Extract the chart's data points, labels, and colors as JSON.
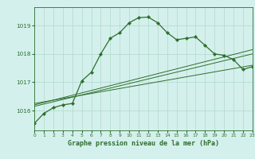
{
  "background_color": "#d4f0ec",
  "grid_color": "#b0d8cc",
  "line_color": "#2d6e2d",
  "title": "Graphe pression niveau de la mer (hPa)",
  "xlim": [
    0,
    23
  ],
  "ylim": [
    1015.3,
    1019.65
  ],
  "yticks": [
    1016,
    1017,
    1018,
    1019
  ],
  "xticks": [
    0,
    1,
    2,
    3,
    4,
    5,
    6,
    7,
    8,
    9,
    10,
    11,
    12,
    13,
    14,
    15,
    16,
    17,
    18,
    19,
    20,
    21,
    22,
    23
  ],
  "series": {
    "main": {
      "x": [
        0,
        1,
        2,
        3,
        4,
        5,
        6,
        7,
        8,
        9,
        10,
        11,
        12,
        13,
        14,
        15,
        16,
        17,
        18,
        19,
        20,
        21,
        22,
        23
      ],
      "y": [
        1015.55,
        1015.9,
        1016.1,
        1016.2,
        1016.25,
        1017.05,
        1017.35,
        1018.0,
        1018.55,
        1018.75,
        1019.1,
        1019.28,
        1019.3,
        1019.1,
        1018.75,
        1018.5,
        1018.55,
        1018.6,
        1018.3,
        1018.0,
        1017.95,
        1017.8,
        1017.45,
        1017.55
      ]
    },
    "line2": {
      "x": [
        0,
        23
      ],
      "y": [
        1016.15,
        1018.0
      ]
    },
    "line3": {
      "x": [
        0,
        23
      ],
      "y": [
        1016.2,
        1018.15
      ]
    },
    "line4": {
      "x": [
        0,
        23
      ],
      "y": [
        1016.25,
        1017.6
      ]
    }
  }
}
